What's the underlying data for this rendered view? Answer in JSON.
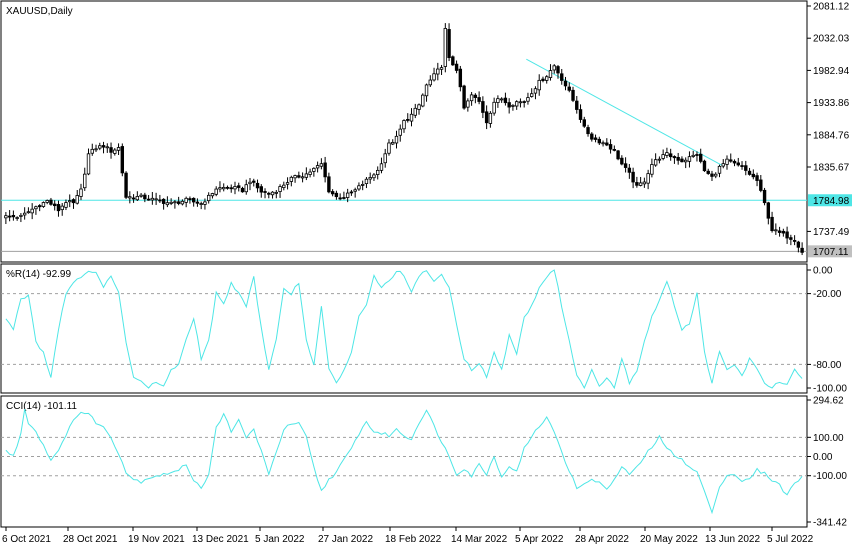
{
  "window": {
    "symbol_title": "XAUUSD,Daily"
  },
  "colors": {
    "background": "#ffffff",
    "axis": "#000000",
    "candle": "#000000",
    "indicator": "#4ee6e6",
    "level_line": "#4ee6e6",
    "level_label_bg": "#4ee6e6",
    "last_price_line": "#a0a0a0",
    "dashed_grid": "#a0a0a0"
  },
  "chart_data": [
    {
      "type": "candlestick",
      "title": "XAUUSD,Daily",
      "y_ticks": [
        "2081.12",
        "2032.03",
        "1982.94",
        "1933.86",
        "1884.76",
        "1835.67",
        "1737.49"
      ],
      "ylim": [
        1700.0,
        2081.12
      ],
      "level_label": "1784.98",
      "level_value": 1784.98,
      "last_price_label": "1707.11",
      "last_price_value": 1707.11,
      "trendline": {
        "from": [
          "2022-04-18",
          2000.0
        ],
        "to": [
          "2022-06-30",
          1838.0
        ]
      },
      "x_ticks": [
        "6 Oct 2021",
        "28 Oct 2021",
        "19 Nov 2021",
        "13 Dec 2021",
        "5 Jan 2022",
        "27 Jan 2022",
        "18 Feb 2022",
        "14 Mar 2022",
        "5 Apr 2022",
        "28 Apr 2022",
        "20 May 2022",
        "13 Jun 2022",
        "5 Jul 2022"
      ],
      "close_anchors": [
        [
          0,
          1760
        ],
        [
          4,
          1760
        ],
        [
          8,
          1775
        ],
        [
          11,
          1784
        ],
        [
          14,
          1770
        ],
        [
          16,
          1783
        ],
        [
          18,
          1780
        ],
        [
          20,
          1800
        ],
        [
          22,
          1855
        ],
        [
          24,
          1865
        ],
        [
          26,
          1868
        ],
        [
          28,
          1860
        ],
        [
          30,
          1865
        ],
        [
          32,
          1790
        ],
        [
          34,
          1790
        ],
        [
          36,
          1790
        ],
        [
          40,
          1785
        ],
        [
          44,
          1780
        ],
        [
          48,
          1785
        ],
        [
          52,
          1780
        ],
        [
          54,
          1790
        ],
        [
          56,
          1803
        ],
        [
          60,
          1805
        ],
        [
          63,
          1800
        ],
        [
          65,
          1815
        ],
        [
          68,
          1798
        ],
        [
          70,
          1795
        ],
        [
          72,
          1800
        ],
        [
          76,
          1818
        ],
        [
          80,
          1825
        ],
        [
          84,
          1840
        ],
        [
          86,
          1800
        ],
        [
          88,
          1790
        ],
        [
          90,
          1790
        ],
        [
          93,
          1800
        ],
        [
          96,
          1815
        ],
        [
          99,
          1830
        ],
        [
          102,
          1870
        ],
        [
          104,
          1880
        ],
        [
          106,
          1905
        ],
        [
          108,
          1915
        ],
        [
          110,
          1930
        ],
        [
          112,
          1960
        ],
        [
          114,
          1975
        ],
        [
          116,
          1990
        ],
        [
          117,
          2045
        ],
        [
          118,
          2000
        ],
        [
          120,
          1985
        ],
        [
          122,
          1925
        ],
        [
          124,
          1945
        ],
        [
          126,
          1935
        ],
        [
          128,
          1905
        ],
        [
          130,
          1935
        ],
        [
          132,
          1940
        ],
        [
          134,
          1930
        ],
        [
          136,
          1935
        ],
        [
          138,
          1935
        ],
        [
          140,
          1950
        ],
        [
          142,
          1965
        ],
        [
          144,
          1975
        ],
        [
          146,
          1990
        ],
        [
          148,
          1970
        ],
        [
          150,
          1950
        ],
        [
          152,
          1925
        ],
        [
          154,
          1895
        ],
        [
          156,
          1880
        ],
        [
          158,
          1875
        ],
        [
          160,
          1870
        ],
        [
          162,
          1860
        ],
        [
          164,
          1840
        ],
        [
          166,
          1825
        ],
        [
          168,
          1805
        ],
        [
          170,
          1815
        ],
        [
          172,
          1840
        ],
        [
          174,
          1850
        ],
        [
          176,
          1855
        ],
        [
          178,
          1850
        ],
        [
          180,
          1845
        ],
        [
          182,
          1850
        ],
        [
          184,
          1855
        ],
        [
          186,
          1830
        ],
        [
          188,
          1820
        ],
        [
          190,
          1835
        ],
        [
          192,
          1845
        ],
        [
          194,
          1840
        ],
        [
          196,
          1835
        ],
        [
          198,
          1825
        ],
        [
          200,
          1815
        ],
        [
          202,
          1780
        ],
        [
          204,
          1740
        ],
        [
          206,
          1735
        ],
        [
          208,
          1730
        ],
        [
          210,
          1725
        ],
        [
          212,
          1707
        ]
      ]
    },
    {
      "type": "line",
      "title": "%R(14) -92.99",
      "series_label": "%R(14)",
      "last_value_label": "-92.99",
      "y_ticks": [
        "0.00",
        "-20.00",
        "-80.00",
        "-100.00"
      ],
      "ylim": [
        -100,
        0
      ],
      "dashed_levels": [
        -20,
        -80
      ],
      "anchors": [
        [
          0,
          -40
        ],
        [
          2,
          -50
        ],
        [
          4,
          -25
        ],
        [
          6,
          -20
        ],
        [
          8,
          -60
        ],
        [
          10,
          -70
        ],
        [
          12,
          -90
        ],
        [
          14,
          -50
        ],
        [
          16,
          -20
        ],
        [
          18,
          -10
        ],
        [
          20,
          -5
        ],
        [
          22,
          0
        ],
        [
          24,
          -3
        ],
        [
          26,
          -15
        ],
        [
          28,
          -5
        ],
        [
          30,
          -20
        ],
        [
          32,
          -60
        ],
        [
          34,
          -90
        ],
        [
          36,
          -95
        ],
        [
          38,
          -100
        ],
        [
          40,
          -95
        ],
        [
          42,
          -98
        ],
        [
          44,
          -85
        ],
        [
          46,
          -80
        ],
        [
          48,
          -60
        ],
        [
          50,
          -40
        ],
        [
          52,
          -75
        ],
        [
          54,
          -60
        ],
        [
          56,
          -20
        ],
        [
          58,
          -30
        ],
        [
          60,
          -10
        ],
        [
          62,
          -20
        ],
        [
          64,
          -30
        ],
        [
          66,
          -5
        ],
        [
          68,
          -50
        ],
        [
          70,
          -85
        ],
        [
          72,
          -60
        ],
        [
          74,
          -15
        ],
        [
          76,
          -20
        ],
        [
          78,
          -10
        ],
        [
          80,
          -60
        ],
        [
          82,
          -80
        ],
        [
          84,
          -30
        ],
        [
          86,
          -85
        ],
        [
          88,
          -95
        ],
        [
          90,
          -85
        ],
        [
          92,
          -70
        ],
        [
          94,
          -40
        ],
        [
          96,
          -30
        ],
        [
          98,
          -5
        ],
        [
          100,
          -15
        ],
        [
          102,
          -10
        ],
        [
          104,
          0
        ],
        [
          106,
          -5
        ],
        [
          108,
          -20
        ],
        [
          110,
          -5
        ],
        [
          112,
          0
        ],
        [
          114,
          -10
        ],
        [
          116,
          -5
        ],
        [
          118,
          -15
        ],
        [
          120,
          -45
        ],
        [
          122,
          -75
        ],
        [
          124,
          -85
        ],
        [
          126,
          -80
        ],
        [
          128,
          -90
        ],
        [
          130,
          -70
        ],
        [
          132,
          -85
        ],
        [
          134,
          -55
        ],
        [
          136,
          -70
        ],
        [
          138,
          -40
        ],
        [
          140,
          -30
        ],
        [
          142,
          -15
        ],
        [
          144,
          -5
        ],
        [
          146,
          0
        ],
        [
          148,
          -30
        ],
        [
          150,
          -60
        ],
        [
          152,
          -90
        ],
        [
          154,
          -100
        ],
        [
          156,
          -85
        ],
        [
          158,
          -98
        ],
        [
          160,
          -90
        ],
        [
          162,
          -100
        ],
        [
          164,
          -75
        ],
        [
          166,
          -95
        ],
        [
          168,
          -85
        ],
        [
          170,
          -60
        ],
        [
          172,
          -40
        ],
        [
          174,
          -25
        ],
        [
          176,
          -10
        ],
        [
          178,
          -30
        ],
        [
          180,
          -50
        ],
        [
          182,
          -45
        ],
        [
          184,
          -20
        ],
        [
          186,
          -70
        ],
        [
          188,
          -95
        ],
        [
          190,
          -70
        ],
        [
          192,
          -85
        ],
        [
          194,
          -80
        ],
        [
          196,
          -90
        ],
        [
          198,
          -75
        ],
        [
          200,
          -85
        ],
        [
          202,
          -95
        ],
        [
          204,
          -100
        ],
        [
          206,
          -95
        ],
        [
          208,
          -98
        ],
        [
          210,
          -85
        ],
        [
          212,
          -93
        ]
      ]
    },
    {
      "type": "line",
      "title": "CCI(14) -101.11",
      "series_label": "CCI(14)",
      "last_value_label": "-101.11",
      "y_ticks": [
        "294.62",
        "100.00",
        "0.00",
        "-100.00",
        "-341.42"
      ],
      "ylim": [
        -341.42,
        294.62
      ],
      "dashed_levels": [
        100,
        0,
        -100
      ],
      "anchors": [
        [
          0,
          30
        ],
        [
          2,
          0
        ],
        [
          4,
          120
        ],
        [
          5,
          250
        ],
        [
          6,
          180
        ],
        [
          8,
          130
        ],
        [
          10,
          60
        ],
        [
          12,
          -20
        ],
        [
          14,
          40
        ],
        [
          16,
          100
        ],
        [
          18,
          200
        ],
        [
          20,
          230
        ],
        [
          22,
          220
        ],
        [
          24,
          180
        ],
        [
          26,
          150
        ],
        [
          28,
          100
        ],
        [
          30,
          20
        ],
        [
          32,
          -80
        ],
        [
          34,
          -120
        ],
        [
          36,
          -130
        ],
        [
          38,
          -110
        ],
        [
          40,
          -100
        ],
        [
          42,
          -95
        ],
        [
          44,
          -80
        ],
        [
          46,
          -75
        ],
        [
          48,
          -40
        ],
        [
          50,
          -120
        ],
        [
          52,
          -160
        ],
        [
          54,
          -100
        ],
        [
          56,
          150
        ],
        [
          58,
          230
        ],
        [
          60,
          120
        ],
        [
          62,
          190
        ],
        [
          64,
          100
        ],
        [
          66,
          140
        ],
        [
          68,
          30
        ],
        [
          70,
          -100
        ],
        [
          72,
          30
        ],
        [
          74,
          140
        ],
        [
          76,
          170
        ],
        [
          78,
          170
        ],
        [
          80,
          100
        ],
        [
          82,
          -60
        ],
        [
          84,
          -180
        ],
        [
          86,
          -120
        ],
        [
          88,
          -80
        ],
        [
          90,
          -20
        ],
        [
          92,
          40
        ],
        [
          94,
          120
        ],
        [
          96,
          180
        ],
        [
          98,
          130
        ],
        [
          100,
          120
        ],
        [
          102,
          110
        ],
        [
          104,
          140
        ],
        [
          106,
          110
        ],
        [
          108,
          90
        ],
        [
          110,
          180
        ],
        [
          112,
          240
        ],
        [
          114,
          160
        ],
        [
          116,
          80
        ],
        [
          118,
          0
        ],
        [
          120,
          -90
        ],
        [
          122,
          -60
        ],
        [
          124,
          -100
        ],
        [
          126,
          -40
        ],
        [
          128,
          -90
        ],
        [
          130,
          0
        ],
        [
          132,
          -100
        ],
        [
          134,
          -60
        ],
        [
          136,
          -70
        ],
        [
          138,
          40
        ],
        [
          140,
          100
        ],
        [
          142,
          160
        ],
        [
          144,
          200
        ],
        [
          146,
          130
        ],
        [
          148,
          30
        ],
        [
          150,
          -80
        ],
        [
          152,
          -160
        ],
        [
          154,
          -150
        ],
        [
          156,
          -110
        ],
        [
          158,
          -140
        ],
        [
          160,
          -170
        ],
        [
          162,
          -120
        ],
        [
          164,
          -60
        ],
        [
          166,
          -90
        ],
        [
          168,
          -60
        ],
        [
          170,
          0
        ],
        [
          172,
          50
        ],
        [
          174,
          100
        ],
        [
          176,
          40
        ],
        [
          178,
          10
        ],
        [
          180,
          -10
        ],
        [
          182,
          -60
        ],
        [
          184,
          -80
        ],
        [
          186,
          -180
        ],
        [
          188,
          -300
        ],
        [
          190,
          -150
        ],
        [
          192,
          -100
        ],
        [
          194,
          -90
        ],
        [
          196,
          -130
        ],
        [
          198,
          -120
        ],
        [
          200,
          -70
        ],
        [
          202,
          -90
        ],
        [
          204,
          -120
        ],
        [
          206,
          -150
        ],
        [
          208,
          -200
        ],
        [
          210,
          -140
        ],
        [
          212,
          -101
        ]
      ]
    }
  ]
}
